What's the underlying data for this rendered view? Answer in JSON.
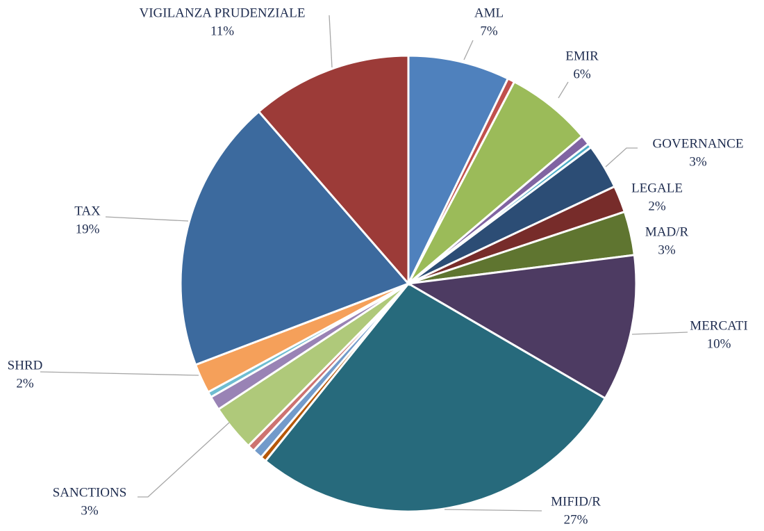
{
  "chart_data": {
    "type": "pie",
    "categories": [
      "AML",
      null,
      "EMIR",
      null,
      null,
      "GOVERNANCE",
      "LEGALE",
      "MAD/R",
      "MERCATI",
      "MIFID/R",
      null,
      null,
      null,
      "SANCTIONS",
      null,
      null,
      "SHRD",
      "TAX",
      "VIGILANZA PRUDENZIALE"
    ],
    "values": [
      7.2,
      0.5,
      6.1,
      0.7,
      0.3,
      3.2,
      1.9,
      3.1,
      10.4,
      27.4,
      0.4,
      0.7,
      0.5,
      3.3,
      1.0,
      0.4,
      2.1,
      19.4,
      11.4
    ],
    "value_labels": [
      "7%",
      null,
      "6%",
      null,
      null,
      "3%",
      "2%",
      "3%",
      "10%",
      "27%",
      null,
      null,
      null,
      "3%",
      null,
      null,
      "2%",
      "19%",
      "11%"
    ],
    "colors": [
      "#4f81bd",
      "#c0504d",
      "#9bbb59",
      "#8064a2",
      "#4bacc6",
      "#2c4d75",
      "#772c2a",
      "#5f7530",
      "#4d3b62",
      "#276a7c",
      "#b65708",
      "#729aca",
      "#cd7371",
      "#afc97a",
      "#9983b5",
      "#6fbdd1",
      "#f5a05a",
      "#3c6a9e",
      "#9c3b38"
    ]
  }
}
